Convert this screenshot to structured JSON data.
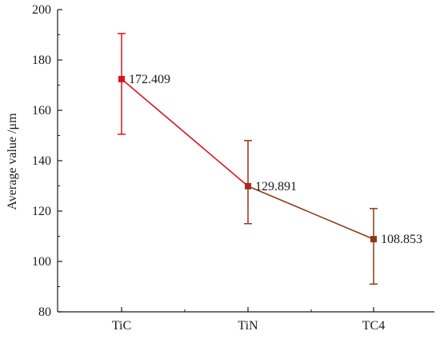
{
  "chart_data": {
    "type": "line",
    "categories": [
      "TiC",
      "TiN",
      "TC4"
    ],
    "series": [
      {
        "values": [
          172.409,
          129.891,
          108.853
        ],
        "error_upper": [
          190.5,
          148.0,
          121.0
        ],
        "error_lower": [
          150.5,
          115.0,
          91.0
        ],
        "point_labels": [
          "172.409",
          "129.891",
          "108.853"
        ],
        "point_colors": [
          "#d8151a",
          "#a0301e",
          "#8a3a14"
        ]
      }
    ],
    "segment_colors": [
      "#d8151a",
      "#8b3a17"
    ],
    "ylabel": "Average value /μm",
    "xlabel": "",
    "ylim": [
      80,
      200
    ],
    "yticks": [
      80,
      100,
      120,
      140,
      160,
      180,
      200
    ],
    "ytick_labels": [
      "80",
      "100",
      "120",
      "140",
      "160",
      "180",
      "200"
    ],
    "grid": false
  }
}
